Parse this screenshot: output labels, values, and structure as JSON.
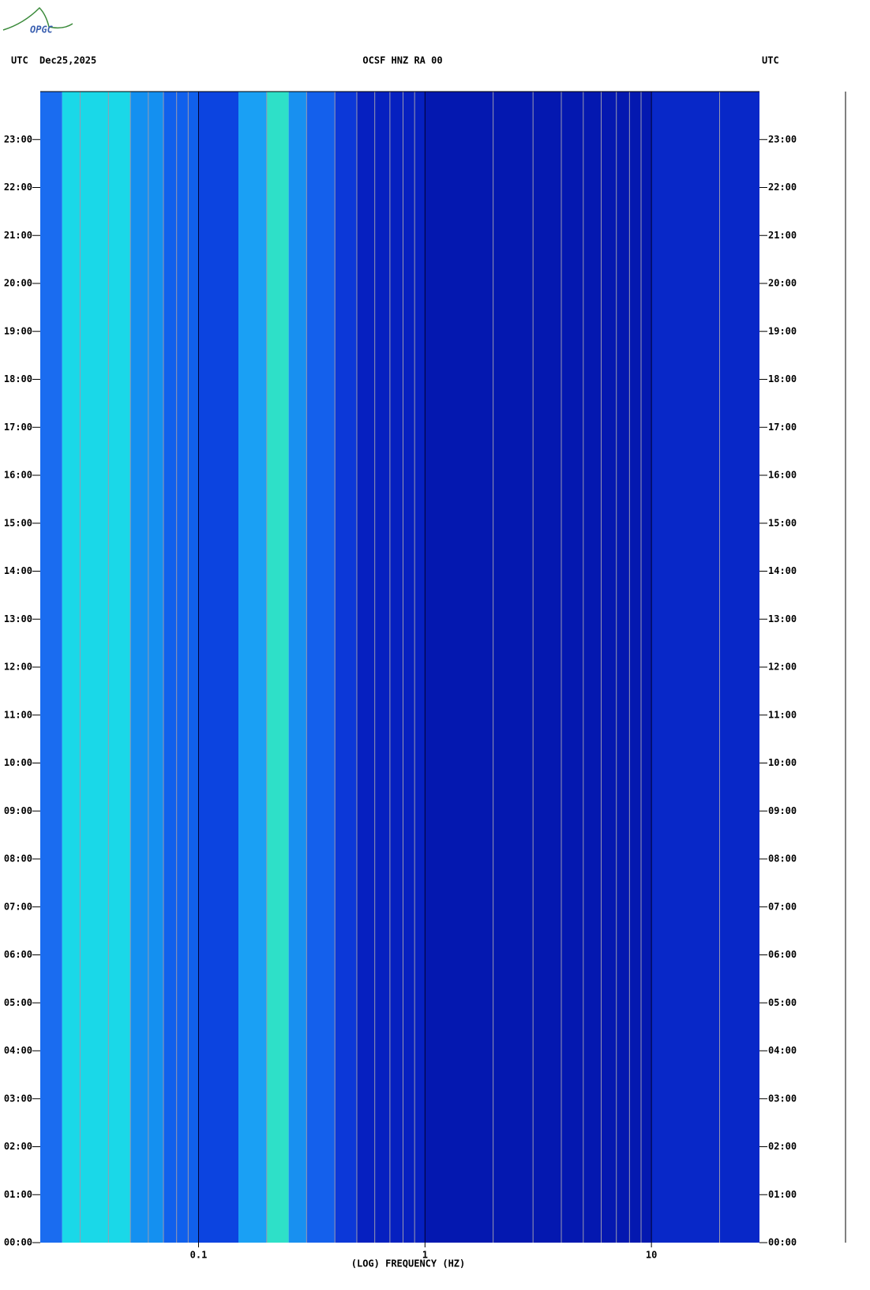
{
  "chart_data": {
    "type": "spectrogram",
    "logo": "OPGC",
    "left_label": "UTC",
    "date": "Dec25,2025",
    "title": "OCSF HNZ RA 00",
    "right_label": "UTC",
    "xlabel": "(LOG) FREQUENCY (HZ)",
    "xscale": "log",
    "xlim": [
      0.02,
      30
    ],
    "xticks": [
      0.1,
      1,
      10
    ],
    "xminor": [
      0.03,
      0.04,
      0.05,
      0.06,
      0.07,
      0.08,
      0.09,
      0.2,
      0.3,
      0.4,
      0.5,
      0.6,
      0.7,
      0.8,
      0.9,
      2,
      3,
      4,
      5,
      6,
      7,
      8,
      9,
      20
    ],
    "ylim": [
      0,
      24
    ],
    "yticks": [
      {
        "value": 0,
        "label": "00:00"
      },
      {
        "value": 1,
        "label": "01:00"
      },
      {
        "value": 2,
        "label": "02:00"
      },
      {
        "value": 3,
        "label": "03:00"
      },
      {
        "value": 4,
        "label": "04:00"
      },
      {
        "value": 5,
        "label": "05:00"
      },
      {
        "value": 6,
        "label": "06:00"
      },
      {
        "value": 7,
        "label": "07:00"
      },
      {
        "value": 8,
        "label": "08:00"
      },
      {
        "value": 9,
        "label": "09:00"
      },
      {
        "value": 10,
        "label": "10:00"
      },
      {
        "value": 11,
        "label": "11:00"
      },
      {
        "value": 12,
        "label": "12:00"
      },
      {
        "value": 13,
        "label": "13:00"
      },
      {
        "value": 14,
        "label": "14:00"
      },
      {
        "value": 15,
        "label": "15:00"
      },
      {
        "value": 16,
        "label": "16:00"
      },
      {
        "value": 17,
        "label": "17:00"
      },
      {
        "value": 18,
        "label": "18:00"
      },
      {
        "value": 19,
        "label": "19:00"
      },
      {
        "value": 20,
        "label": "20:00"
      },
      {
        "value": 21,
        "label": "21:00"
      },
      {
        "value": 22,
        "label": "22:00"
      },
      {
        "value": 23,
        "label": "23:00"
      }
    ],
    "bands": [
      {
        "x0": 0.02,
        "x1": 0.025,
        "color": "#1a6cf0"
      },
      {
        "x0": 0.025,
        "x1": 0.05,
        "color": "#1ad8e8"
      },
      {
        "x0": 0.05,
        "x1": 0.07,
        "color": "#1490f0"
      },
      {
        "x0": 0.07,
        "x1": 0.1,
        "color": "#1060ec"
      },
      {
        "x0": 0.1,
        "x1": 0.15,
        "color": "#0c44e0"
      },
      {
        "x0": 0.15,
        "x1": 0.2,
        "color": "#1aa0f4"
      },
      {
        "x0": 0.2,
        "x1": 0.25,
        "color": "#2ee0c8"
      },
      {
        "x0": 0.25,
        "x1": 0.3,
        "color": "#1890f0"
      },
      {
        "x0": 0.3,
        "x1": 0.4,
        "color": "#1460ec"
      },
      {
        "x0": 0.4,
        "x1": 0.5,
        "color": "#0c38d8"
      },
      {
        "x0": 0.5,
        "x1": 1,
        "color": "#0620c0"
      },
      {
        "x0": 1,
        "x1": 10,
        "color": "#0418b0"
      },
      {
        "x0": 10,
        "x1": 30,
        "color": "#0828c8"
      }
    ]
  }
}
